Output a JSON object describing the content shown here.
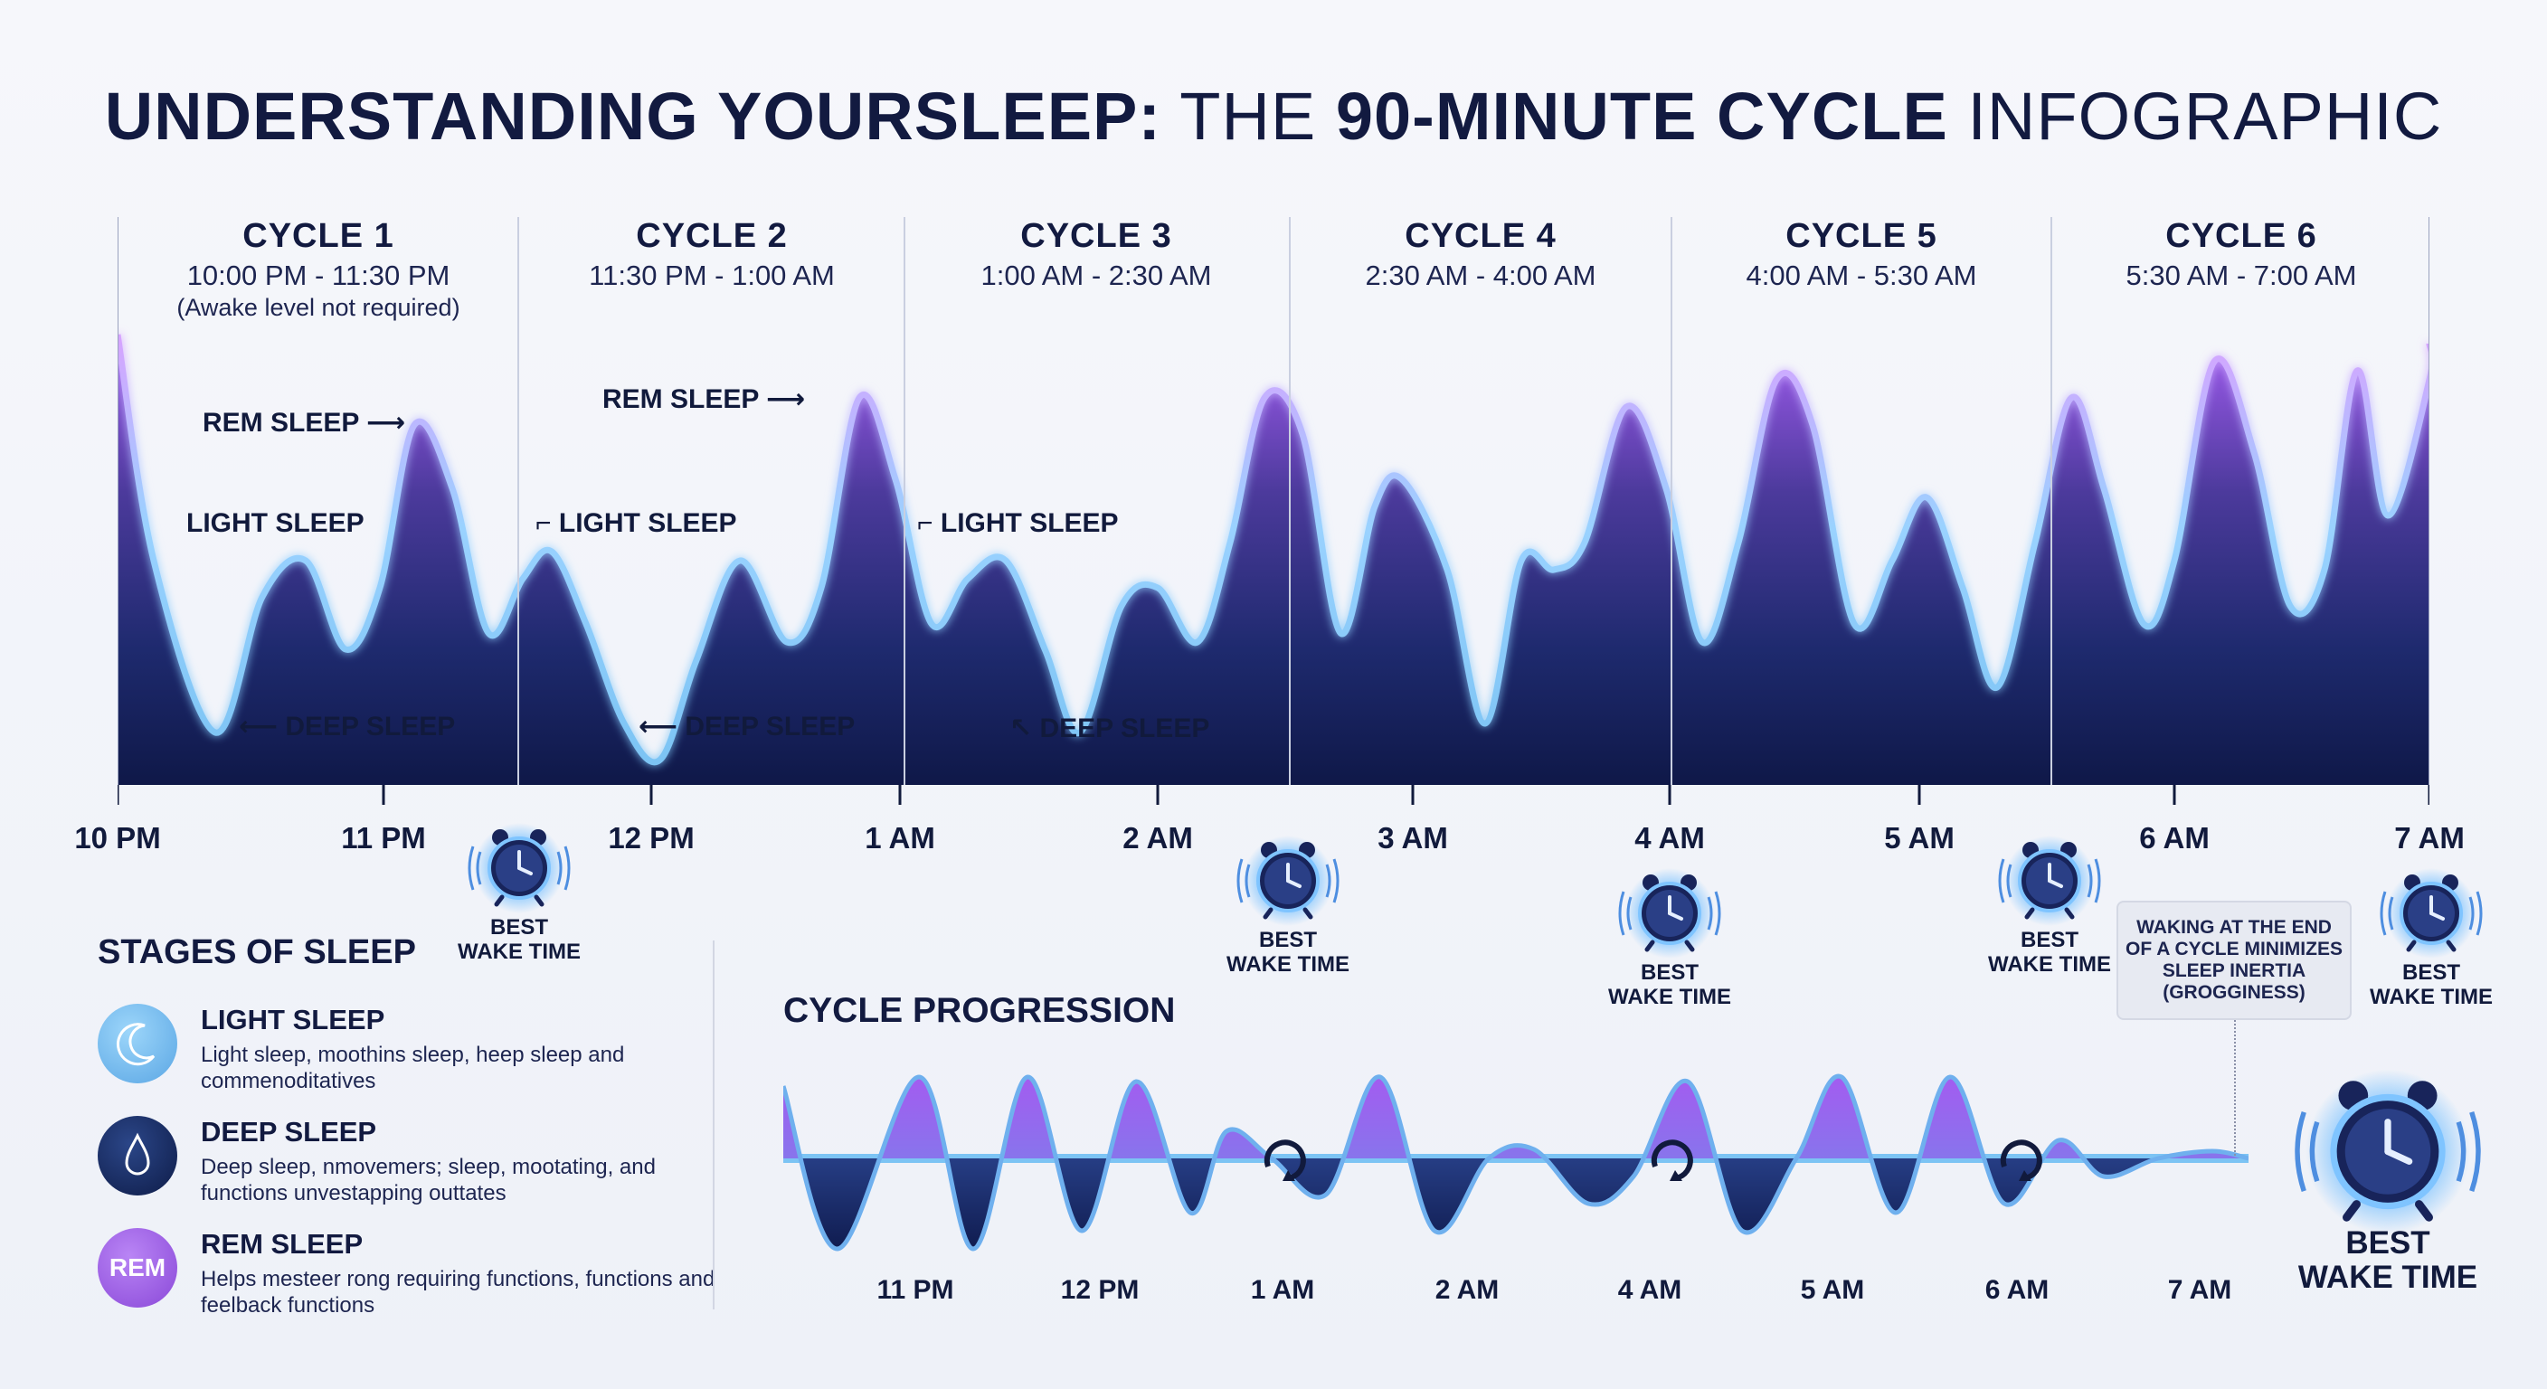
{
  "title": {
    "part1": "UNDERSTANDING YOURSLEEP:",
    "part2": " THE ",
    "part3": "90-MINUTE CYCLE",
    "part4": " INFOGRAPHIC"
  },
  "cycles": [
    {
      "title": "CYCLE 1",
      "range": "10:00 PM - 11:30 PM",
      "note": "(Awake level not required)"
    },
    {
      "title": "CYCLE 2",
      "range": "11:30 PM - 1:00 AM",
      "note": ""
    },
    {
      "title": "CYCLE 3",
      "range": "1:00 AM - 2:30 AM",
      "note": ""
    },
    {
      "title": "CYCLE 4",
      "range": "2:30 AM - 4:00 AM",
      "note": ""
    },
    {
      "title": "CYCLE 5",
      "range": "4:00 AM - 5:30 AM",
      "note": ""
    },
    {
      "title": "CYCLE 6",
      "range": "5:30 AM - 7:00 AM",
      "note": ""
    }
  ],
  "stage_labels": {
    "rem": "REM SLEEP",
    "light": "LIGHT SLEEP",
    "deep": "DEEP SLEEP"
  },
  "time_ticks": [
    "10 PM",
    "11 PM",
    "12 PM",
    "1 AM",
    "2 AM",
    "3 AM",
    "4 AM",
    "5 AM",
    "6 AM",
    "7 AM"
  ],
  "best_wake": {
    "line1": "BEST",
    "line2": "WAKE TIME"
  },
  "stages_section": {
    "title": "STAGES OF SLEEP",
    "items": [
      {
        "name": "LIGHT SLEEP",
        "desc": "Light sleep, moothins sleep, heep sleep and commenoditatives",
        "icon": "moon-icon",
        "color": "#6cb8ea"
      },
      {
        "name": "DEEP SLEEP",
        "desc": "Deep sleep, nmovemers; sleep, mootating, and functions unvestapping outtates",
        "icon": "water-drop-icon",
        "color": "#142a5c"
      },
      {
        "name": "REM SLEEP",
        "desc": "Helps mesteer rong requiring functions, functions and feelback functions",
        "icon": "rem-badge-icon",
        "badge": "REM",
        "color": "#9b5de0"
      }
    ]
  },
  "progression": {
    "title": "CYCLE PROGRESSION",
    "ticks": [
      "11 PM",
      "12 PM",
      "1 AM",
      "2 AM",
      "4 AM",
      "5 AM",
      "6 AM",
      "7 AM"
    ]
  },
  "callout": {
    "line1": "WAKING AT THE END",
    "line2": "OF A CYCLE MINIMIZES",
    "line3": "SLEEP INERTIA",
    "line4": "(GROGGINESS)"
  },
  "final_wake": {
    "line1": "BEST",
    "line2": "WAKE TIME"
  },
  "colors": {
    "navy": "#0f1a4a",
    "light_blue": "#7cc4f4",
    "purple": "#a35cf0"
  }
}
